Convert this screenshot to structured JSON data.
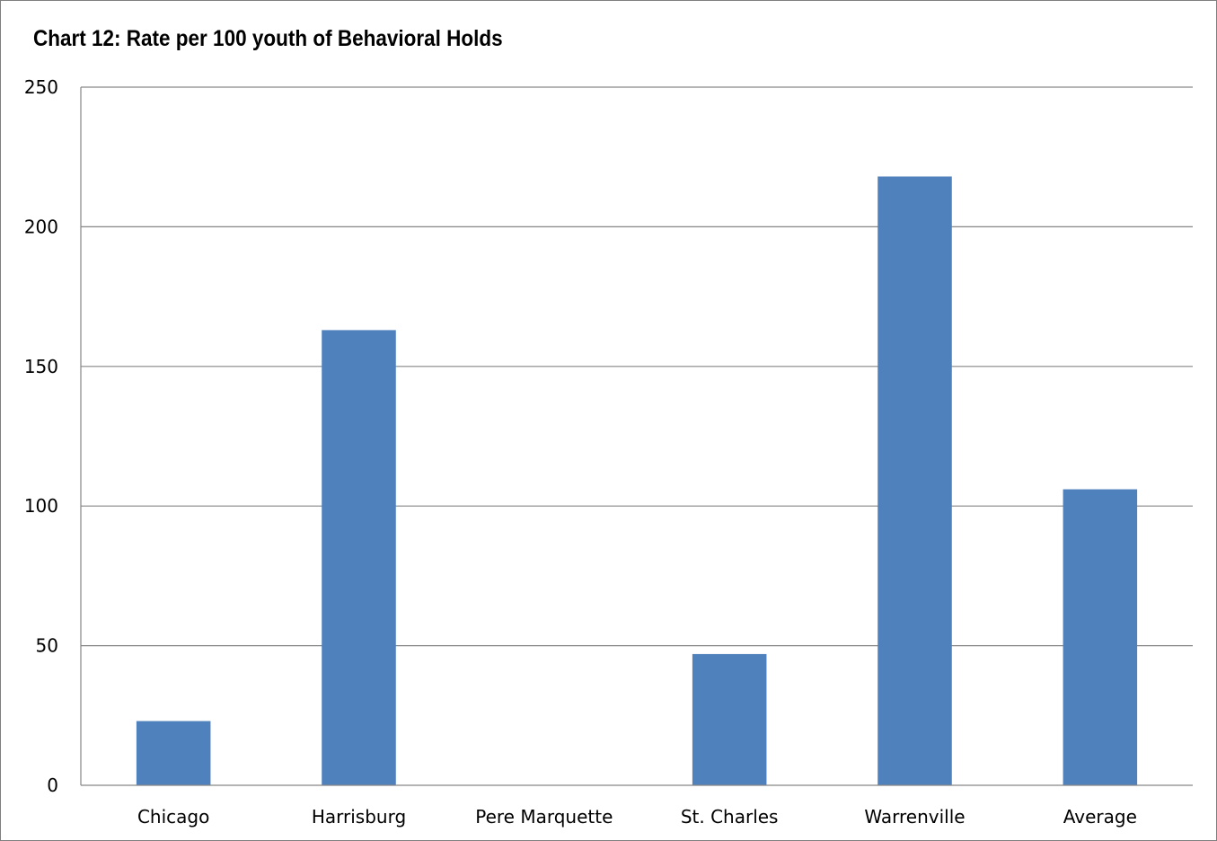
{
  "chart_data": {
    "type": "bar",
    "title": "Chart 12: Rate per 100 youth of Behavioral Holds",
    "xlabel": "",
    "ylabel": "",
    "categories": [
      "Chicago",
      "Harrisburg",
      "Pere Marquette",
      "St. Charles",
      "Warrenville",
      "Average"
    ],
    "values": [
      23,
      163,
      0,
      47,
      218,
      106
    ],
    "ylim": [
      0,
      250
    ],
    "yticks": [
      0,
      50,
      100,
      150,
      200,
      250
    ],
    "grid": true,
    "legend": "none",
    "bar_color": "#4f81bd",
    "grid_color": "#868686"
  }
}
